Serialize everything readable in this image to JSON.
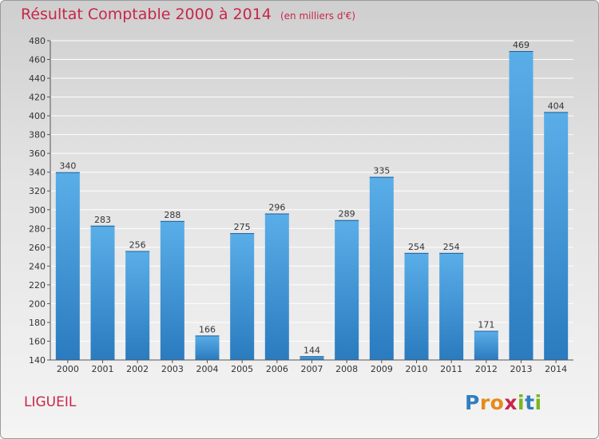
{
  "chart_data": {
    "type": "bar",
    "title": "Résultat Comptable 2000 à 2014",
    "subtitle": "(en milliers d'€)",
    "categories": [
      "2000",
      "2001",
      "2002",
      "2003",
      "2004",
      "2005",
      "2006",
      "2007",
      "2008",
      "2009",
      "2010",
      "2011",
      "2012",
      "2013",
      "2014"
    ],
    "values": [
      340,
      283,
      256,
      288,
      166,
      275,
      296,
      144,
      289,
      335,
      254,
      254,
      171,
      469,
      404
    ],
    "ylim": [
      140,
      480
    ],
    "yticks": [
      140,
      160,
      180,
      200,
      220,
      240,
      260,
      280,
      300,
      320,
      340,
      360,
      380,
      400,
      420,
      440,
      460,
      480
    ],
    "xlabel": "",
    "ylabel": "",
    "grid": true,
    "bar_color_top": "#5aaee8",
    "bar_color_bottom": "#2a7bbf"
  },
  "location": "LIGUEIL",
  "logo": {
    "letters": [
      "P",
      "r",
      "o",
      "x",
      "i",
      "t",
      "i"
    ],
    "colors": [
      "#2f7fc0",
      "#e88a1a",
      "#e88a1a",
      "#c8264a",
      "#7ab51d",
      "#2f7fc0",
      "#7ab51d"
    ]
  },
  "colors": {
    "accent": "#c8264a"
  }
}
